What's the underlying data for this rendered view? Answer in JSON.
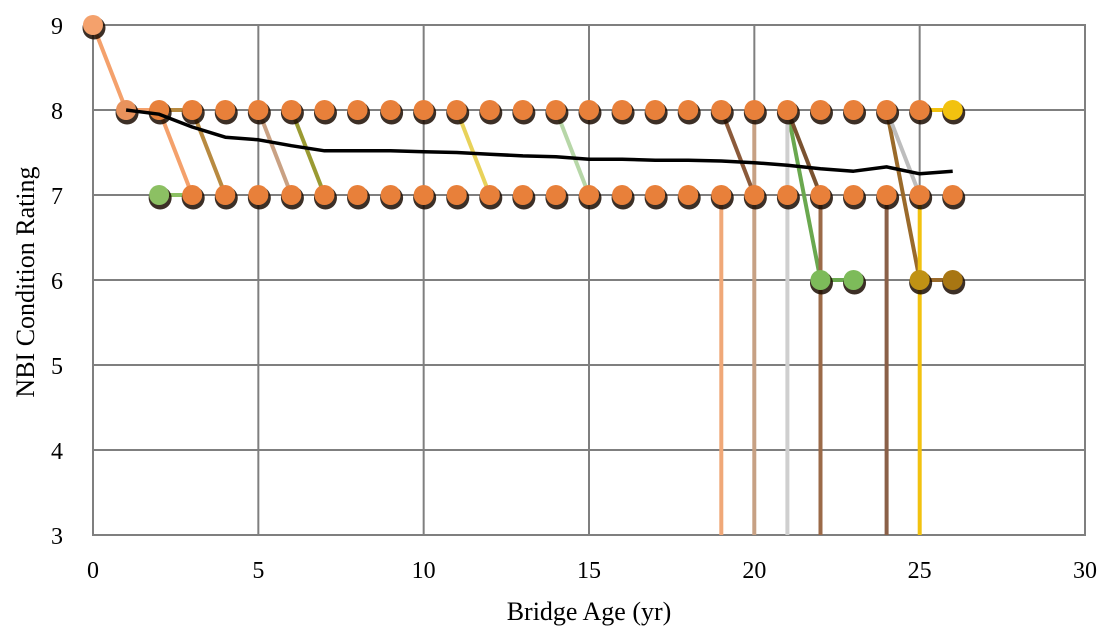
{
  "chart_data": {
    "type": "line",
    "title": "",
    "xlabel": "Bridge Age (yr)",
    "ylabel": "NBI Condition Rating",
    "xlim": [
      0,
      30
    ],
    "ylim": [
      3,
      9
    ],
    "xticks": [
      0,
      5,
      10,
      15,
      20,
      25,
      30
    ],
    "yticks": [
      3,
      4,
      5,
      6,
      7,
      8,
      9
    ],
    "grid": true,
    "legend": "none",
    "markers": {
      "top_row": {
        "y": 8,
        "x": [
          2,
          3,
          4,
          5,
          6,
          7,
          8,
          9,
          10,
          11,
          12,
          13,
          14,
          15,
          16,
          17,
          18,
          19,
          20,
          21,
          22,
          23,
          24,
          25
        ]
      },
      "mid_row": {
        "y": 7,
        "x": [
          3,
          4,
          5,
          6,
          7,
          8,
          9,
          10,
          11,
          12,
          13,
          14,
          15,
          16,
          17,
          18,
          19,
          20,
          21,
          22,
          23,
          24,
          25,
          26
        ]
      },
      "extra": [
        {
          "x": 0,
          "y": 9,
          "color": "#f4a16c"
        },
        {
          "x": 1,
          "y": 8,
          "color": "#e8925c"
        },
        {
          "x": 2,
          "y": 7,
          "color": "#8cc063"
        },
        {
          "x": 26,
          "y": 8,
          "color": "#f2c20f"
        },
        {
          "x": 22,
          "y": 6,
          "color": "#7dbb5a"
        },
        {
          "x": 23,
          "y": 6,
          "color": "#7dbb5a"
        },
        {
          "x": 25,
          "y": 6,
          "color": "#c09214"
        },
        {
          "x": 26,
          "y": 6,
          "color": "#a87612"
        }
      ]
    },
    "series": [
      {
        "values_xy": [
          [
            0,
            9
          ],
          [
            1,
            8
          ],
          [
            2,
            8
          ],
          [
            3,
            7
          ]
        ],
        "color": "#f4a16c"
      },
      {
        "values_xy": [
          [
            2,
            8
          ],
          [
            3,
            8
          ],
          [
            4,
            7
          ]
        ],
        "color": "#b88a40"
      },
      {
        "values_xy": [
          [
            5,
            8
          ],
          [
            6,
            7
          ]
        ],
        "color": "#c9a183"
      },
      {
        "values_xy": [
          [
            6,
            8
          ],
          [
            7,
            7
          ]
        ],
        "color": "#9a9a32"
      },
      {
        "values_xy": [
          [
            11,
            8
          ],
          [
            12,
            7
          ]
        ],
        "color": "#e8d25a"
      },
      {
        "values_xy": [
          [
            14,
            8
          ],
          [
            15,
            7
          ]
        ],
        "color": "#b7d7a8"
      },
      {
        "values_xy": [
          [
            19,
            8
          ],
          [
            20,
            7
          ]
        ],
        "color": "#8b5a3a"
      },
      {
        "values_xy": [
          [
            21,
            8
          ],
          [
            22,
            6
          ],
          [
            23,
            6
          ]
        ],
        "color": "#6aa84f"
      },
      {
        "values_xy": [
          [
            21,
            8
          ],
          [
            22,
            7
          ]
        ],
        "color": "#7a5230"
      },
      {
        "values_xy": [
          [
            24,
            8
          ],
          [
            25,
            6
          ],
          [
            26,
            6
          ]
        ],
        "color": "#9a6a2a"
      },
      {
        "values_xy": [
          [
            24,
            8
          ],
          [
            25,
            7
          ]
        ],
        "color": "#bdbdbd"
      },
      {
        "values_xy": [
          [
            2,
            7
          ],
          [
            3,
            7
          ]
        ],
        "color": "#8cc063"
      },
      {
        "values_xy": [
          [
            25,
            8
          ],
          [
            26,
            8
          ]
        ],
        "color": "#f2c20f"
      },
      {
        "values_xy": [
          [
            19,
            7
          ],
          [
            19,
            3
          ]
        ],
        "color": "#f0a878"
      },
      {
        "values_xy": [
          [
            20,
            8
          ],
          [
            20,
            3
          ]
        ],
        "color": "#c7a184"
      },
      {
        "values_xy": [
          [
            21,
            8
          ],
          [
            21,
            3
          ]
        ],
        "color": "#cfcfcf"
      },
      {
        "values_xy": [
          [
            22,
            7
          ],
          [
            22,
            3
          ]
        ],
        "color": "#9b6a48"
      },
      {
        "values_xy": [
          [
            24,
            7
          ],
          [
            24,
            3
          ]
        ],
        "color": "#8a6048"
      },
      {
        "values_xy": [
          [
            25,
            7
          ],
          [
            25,
            3
          ]
        ],
        "color": "#f2c20f"
      }
    ],
    "average": {
      "color": "#000000",
      "values_xy": [
        [
          1,
          8.0
        ],
        [
          2,
          7.95
        ],
        [
          3,
          7.8
        ],
        [
          4,
          7.68
        ],
        [
          5,
          7.65
        ],
        [
          6,
          7.58
        ],
        [
          7,
          7.52
        ],
        [
          8,
          7.52
        ],
        [
          9,
          7.52
        ],
        [
          10,
          7.51
        ],
        [
          11,
          7.5
        ],
        [
          12,
          7.48
        ],
        [
          13,
          7.46
        ],
        [
          14,
          7.45
        ],
        [
          15,
          7.42
        ],
        [
          16,
          7.42
        ],
        [
          17,
          7.41
        ],
        [
          18,
          7.41
        ],
        [
          19,
          7.4
        ],
        [
          20,
          7.38
        ],
        [
          21,
          7.35
        ],
        [
          22,
          7.31
        ],
        [
          23,
          7.28
        ],
        [
          24,
          7.33
        ],
        [
          25,
          7.25
        ],
        [
          26,
          7.28
        ]
      ]
    }
  }
}
